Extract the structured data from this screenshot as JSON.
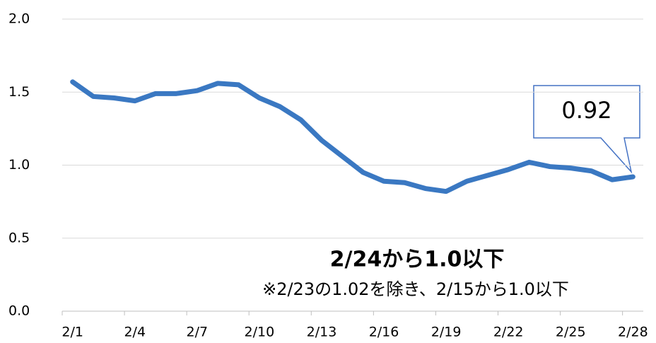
{
  "chart_data": {
    "type": "line",
    "categories": [
      "2/1",
      null,
      null,
      "2/4",
      null,
      null,
      "2/7",
      null,
      null,
      "2/10",
      null,
      null,
      "2/13",
      null,
      null,
      "2/16",
      null,
      null,
      "2/19",
      null,
      null,
      "2/22",
      null,
      null,
      "2/25",
      null,
      null,
      "2/28"
    ],
    "series": [
      {
        "color": "#3a78c2",
        "values": [
          1.57,
          1.47,
          1.46,
          1.44,
          1.49,
          1.49,
          1.51,
          1.56,
          1.55,
          1.46,
          1.4,
          1.31,
          1.17,
          1.06,
          0.95,
          0.89,
          0.88,
          0.84,
          0.82,
          0.89,
          0.93,
          0.97,
          1.02,
          0.99,
          0.98,
          0.96,
          0.9,
          0.92
        ]
      }
    ],
    "ylim": [
      0,
      2
    ],
    "yticks": [
      {
        "value": 0,
        "label": "0.0"
      },
      0.5,
      {
        "value": 1,
        "label": "1.0"
      },
      1.5,
      {
        "value": 2,
        "label": "2.0"
      }
    ],
    "grid": true,
    "annotations": [
      "2/24から1.0以下",
      "※2/23の1.02を除き、2/15から1.0以下"
    ]
  }
}
